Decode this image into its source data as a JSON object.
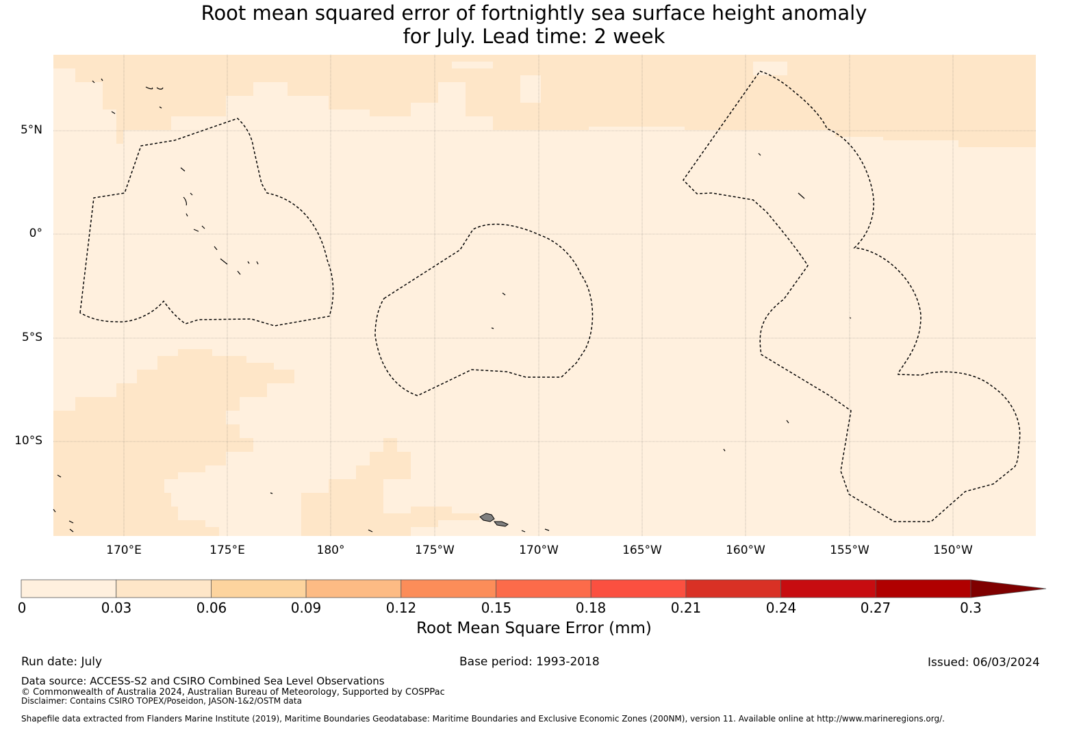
{
  "title_line1": "Root mean squared error of fortnightly sea surface height anomaly",
  "title_line2": "for July. Lead time: 2 week",
  "map": {
    "lat_labels": [
      "5°N",
      "0°",
      "5°S",
      "10°S"
    ],
    "lon_labels": [
      "170°E",
      "175°E",
      "180°",
      "175°W",
      "170°W",
      "165°W",
      "160°W",
      "155°W",
      "150°W"
    ],
    "colors": {
      "low": "#fff0de",
      "mid": "#fee6c8",
      "land": "#808080"
    }
  },
  "colorbar": {
    "ticks": [
      "0",
      "0.03",
      "0.06",
      "0.09",
      "0.12",
      "0.15",
      "0.18",
      "0.21",
      "0.24",
      "0.27",
      "0.3"
    ],
    "colors": [
      "#fff0de",
      "#fee6c8",
      "#fdd49e",
      "#fdbb84",
      "#fc8d59",
      "#fc6b4a",
      "#fb5040",
      "#d93125",
      "#c70c10",
      "#b00000",
      "#7f0000"
    ],
    "label": "Root Mean Square Error (mm)"
  },
  "footer": {
    "run_date": "Run date: July",
    "base_period": "Base period: 1993-2018",
    "issued": "Issued: 06/03/2024",
    "data_source": "Data source: ACCESS-S2 and CSIRO Combined Sea Level Observations",
    "copyright": "© Commonwealth of Australia 2024, Australian Bureau of Meteorology, Supported by COSPPac",
    "disclaimer": "Disclaimer: Contains CSIRO TOPEX/Poseidon, JASON-1&2/OSTM data",
    "shapefile": "Shapefile data extracted from Flanders Marine Institute (2019), Maritime Boundaries Geodatabase: Maritime Boundaries and Exclusive Economic Zones (200NM), version 11. Available online at http://www.marineregions.org/."
  }
}
